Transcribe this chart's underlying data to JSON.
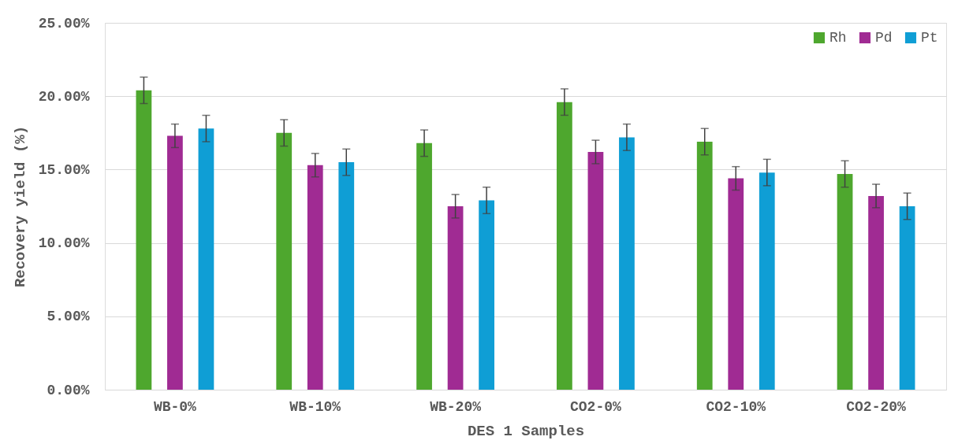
{
  "chart_data": {
    "type": "bar",
    "xlabel": "DES 1 Samples",
    "ylabel": "Recovery yield (%)",
    "categories": [
      "WB-0%",
      "WB-10%",
      "WB-20%",
      "CO2-0%",
      "CO2-10%",
      "CO2-20%"
    ],
    "series": [
      {
        "name": "Rh",
        "color": "#4ea72e",
        "values": [
          20.4,
          17.5,
          16.8,
          19.6,
          16.9,
          14.7
        ],
        "errors": [
          0.9,
          0.9,
          0.9,
          0.9,
          0.9,
          0.9
        ]
      },
      {
        "name": "Pd",
        "color": "#a02b93",
        "values": [
          17.3,
          15.3,
          12.5,
          16.2,
          14.4,
          13.2
        ],
        "errors": [
          0.8,
          0.8,
          0.8,
          0.8,
          0.8,
          0.8
        ]
      },
      {
        "name": "Pt",
        "color": "#0f9ed5",
        "values": [
          17.8,
          15.5,
          12.9,
          17.2,
          14.8,
          12.5
        ],
        "errors": [
          0.9,
          0.9,
          0.9,
          0.9,
          0.9,
          0.9
        ]
      }
    ],
    "ylim": [
      0,
      25
    ],
    "yticks": [
      {
        "value": 0,
        "label": "0.00%"
      },
      {
        "value": 5,
        "label": "5.00%"
      },
      {
        "value": 10,
        "label": "10.00%"
      },
      {
        "value": 15,
        "label": "15.00%"
      },
      {
        "value": 20,
        "label": "20.00%"
      },
      {
        "value": 25,
        "label": "25.00%"
      }
    ],
    "grid": "y",
    "legend": "top right"
  }
}
